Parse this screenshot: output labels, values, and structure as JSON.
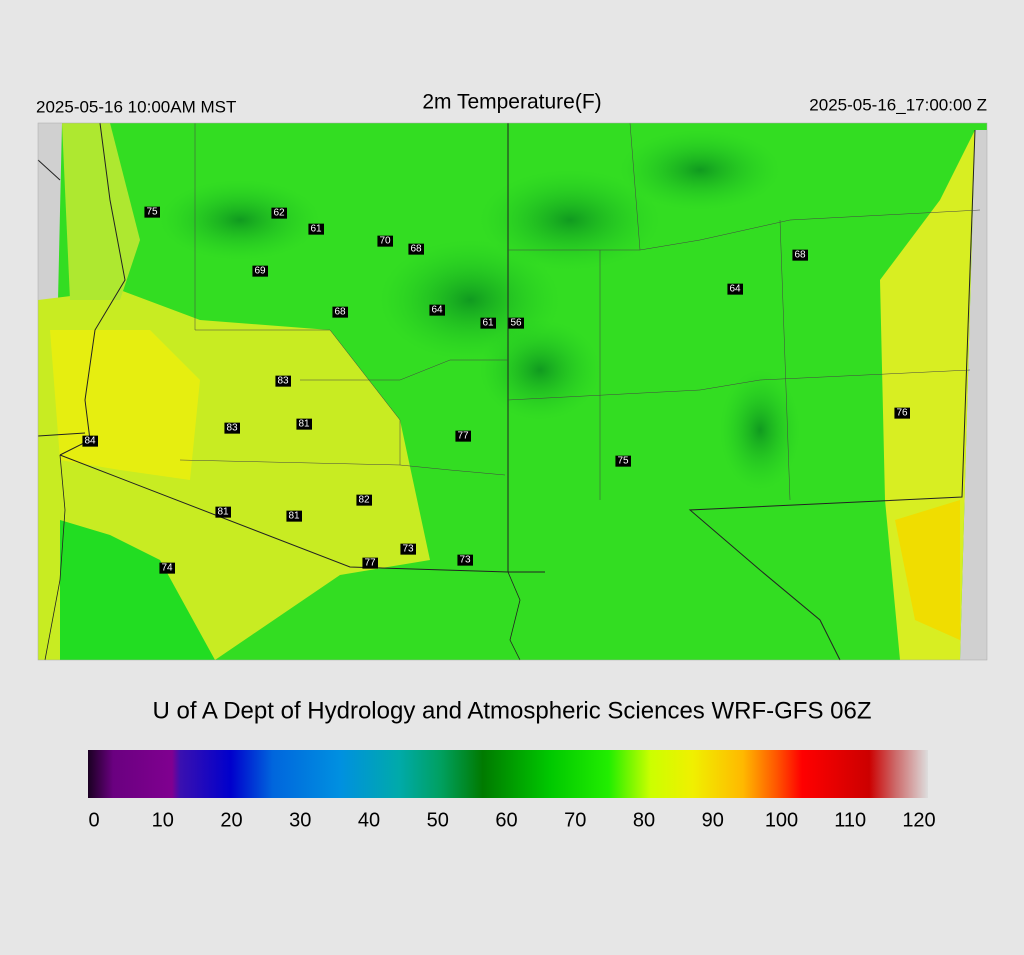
{
  "header": {
    "left": "2025-05-16 10:00AM MST",
    "title": "2m Temperature(F)",
    "right": "2025-05-16_17:00:00 Z"
  },
  "stations": [
    75,
    62,
    61,
    70,
    68,
    69,
    68,
    64,
    61,
    56,
    83,
    83,
    81,
    84,
    77,
    75,
    82,
    81,
    81,
    73,
    73,
    77,
    74,
    68,
    64,
    76
  ],
  "credit": "U of A Dept of Hydrology and Atmospheric Sciences WRF-GFS 06Z",
  "colorbar": {
    "ticks": [
      0,
      10,
      20,
      30,
      40,
      50,
      60,
      70,
      80,
      90,
      100,
      110,
      120
    ]
  }
}
